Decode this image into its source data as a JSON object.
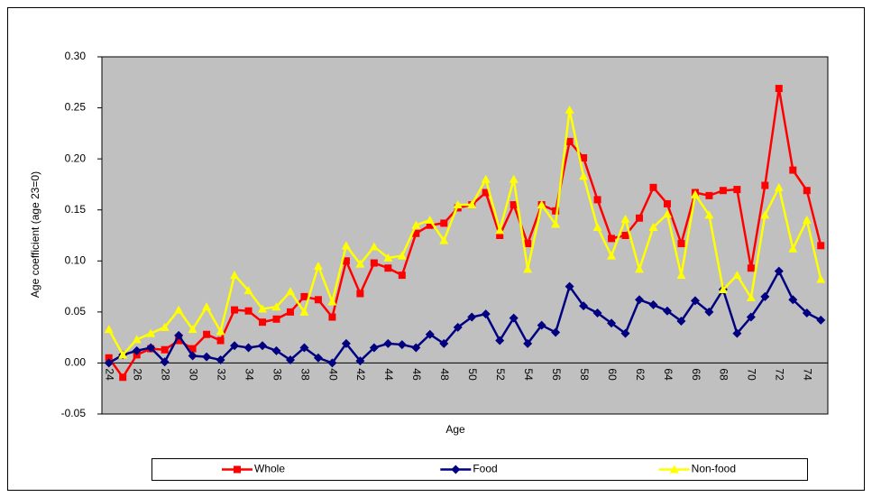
{
  "chart_data": {
    "type": "line",
    "x_label": "Age",
    "y_label": "Age coefficient (age 23=0)",
    "categories": [
      "24",
      null,
      "26",
      null,
      "28",
      null,
      "30",
      null,
      "32",
      null,
      "34",
      null,
      "36",
      null,
      "38",
      null,
      "40",
      null,
      "42",
      null,
      "44",
      null,
      "46",
      null,
      "48",
      null,
      "50",
      null,
      "52",
      null,
      "54",
      null,
      "56",
      null,
      "58",
      null,
      "60",
      null,
      "62",
      null,
      "64",
      null,
      "66",
      null,
      "68",
      null,
      "70",
      null,
      "72",
      null,
      "74",
      null
    ],
    "ylim": [
      -0.05,
      0.3
    ],
    "yticks": [
      -0.05,
      {
        "value": 0,
        "label": "0.00"
      },
      {
        "value": 0.05,
        "label": "0.05"
      },
      {
        "value": 0.1,
        "label": "0.10"
      },
      {
        "value": 0.15,
        "label": "0.15"
      },
      {
        "value": 0.2,
        "label": "0.20"
      },
      {
        "value": 0.25,
        "label": "0.25"
      },
      {
        "value": 0.3,
        "label": "0.30"
      }
    ],
    "legend": "bottom",
    "background": "#c0c0c0",
    "series": [
      {
        "name": "Whole",
        "color": "#ff0000",
        "marker": "square",
        "values": [
          0.005,
          -0.014,
          0.008,
          0.014,
          0.013,
          0.022,
          0.014,
          0.028,
          0.022,
          0.052,
          0.051,
          0.04,
          0.043,
          0.05,
          0.065,
          0.062,
          0.045,
          0.1,
          0.068,
          0.098,
          0.093,
          0.086,
          0.127,
          0.135,
          0.137,
          0.152,
          0.155,
          0.167,
          0.125,
          0.155,
          0.117,
          0.155,
          0.149,
          0.217,
          0.201,
          0.16,
          0.122,
          0.125,
          0.142,
          0.172,
          0.156,
          0.117,
          0.167,
          0.164,
          0.169,
          0.17,
          0.093,
          0.174,
          0.269,
          0.189,
          0.169,
          0.115
        ]
      },
      {
        "name": "Food",
        "color": "#000080",
        "marker": "diamond",
        "values": [
          0.0,
          0.008,
          0.012,
          0.015,
          0.001,
          0.027,
          0.007,
          0.006,
          0.003,
          0.017,
          0.015,
          0.017,
          0.012,
          0.003,
          0.015,
          0.005,
          0.0,
          0.019,
          0.002,
          0.015,
          0.019,
          0.018,
          0.015,
          0.028,
          0.019,
          0.035,
          0.045,
          0.048,
          0.022,
          0.044,
          0.019,
          0.037,
          0.03,
          0.075,
          0.056,
          0.049,
          0.039,
          0.029,
          0.062,
          0.057,
          0.051,
          0.041,
          0.061,
          0.05,
          0.072,
          0.029,
          0.045,
          0.065,
          0.09,
          0.062,
          0.049,
          0.042
        ]
      },
      {
        "name": "Non-food",
        "color": "#ffff00",
        "marker": "triangle",
        "values": [
          0.033,
          0.008,
          0.023,
          0.029,
          0.035,
          0.052,
          0.033,
          0.055,
          0.031,
          0.086,
          0.071,
          0.053,
          0.055,
          0.07,
          0.05,
          0.095,
          0.06,
          0.115,
          0.097,
          0.114,
          0.103,
          0.105,
          0.135,
          0.14,
          0.12,
          0.155,
          0.155,
          0.18,
          0.13,
          0.18,
          0.092,
          0.155,
          0.136,
          0.248,
          0.183,
          0.133,
          0.105,
          0.141,
          0.092,
          0.133,
          0.146,
          0.086,
          0.165,
          0.145,
          0.072,
          0.086,
          0.064,
          0.145,
          0.172,
          0.112,
          0.14,
          0.082
        ]
      }
    ]
  }
}
